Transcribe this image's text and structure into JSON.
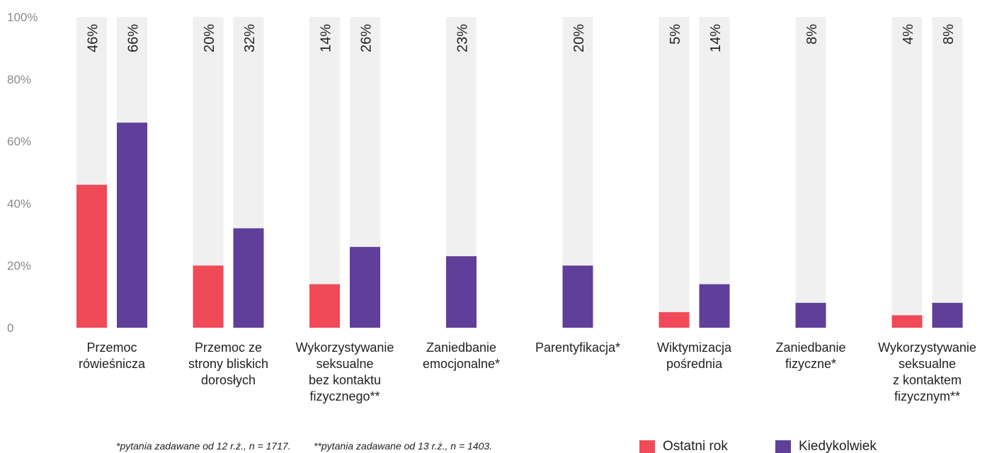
{
  "chart_data": {
    "type": "bar",
    "categories": [
      "Przemoc\nrówieśnicza",
      "Przemoc ze\nstrony bliskich\ndorosłych",
      "Wykorzystywanie\nseksualne\nbez kontaktu\nfizycznego**",
      "Zaniedbanie\nemocjonalne*",
      "Parentyfikacja*",
      "Wiktymizacja\npośrednia",
      "Zaniedbanie\nfizyczne*",
      "Wykorzystywanie\nseksualne\nz kontaktem\nfizycznym**"
    ],
    "series": [
      {
        "name": "Ostatni rok",
        "color": "#f04a58",
        "values": [
          46,
          20,
          14,
          null,
          null,
          5,
          null,
          4
        ],
        "value_labels": [
          "46%",
          "20%",
          "14%",
          null,
          null,
          "5%",
          null,
          "4%"
        ]
      },
      {
        "name": "Kiedykolwiek",
        "color": "#5f3f99",
        "values": [
          66,
          32,
          26,
          23,
          20,
          14,
          8,
          8
        ],
        "value_labels": [
          "66%",
          "32%",
          "26%",
          "23%",
          "20%",
          "14%",
          "8%",
          "8%"
        ]
      }
    ],
    "ylim": [
      0,
      100
    ],
    "yticks": [
      0,
      {
        "value": 20,
        "label": "20%"
      },
      {
        "value": 40,
        "label": "40%"
      },
      {
        "value": 60,
        "label": "60%"
      },
      {
        "value": 80,
        "label": "80%"
      },
      {
        "value": 100,
        "label": "100%"
      }
    ],
    "background_color": "#f0f0f0",
    "legend": "bottom-right",
    "footnotes": [
      "*pytania zadawane od 12 r.ż., n = 1717.",
      "**pytania zadawane od 13 r.ż., n = 1403."
    ]
  }
}
